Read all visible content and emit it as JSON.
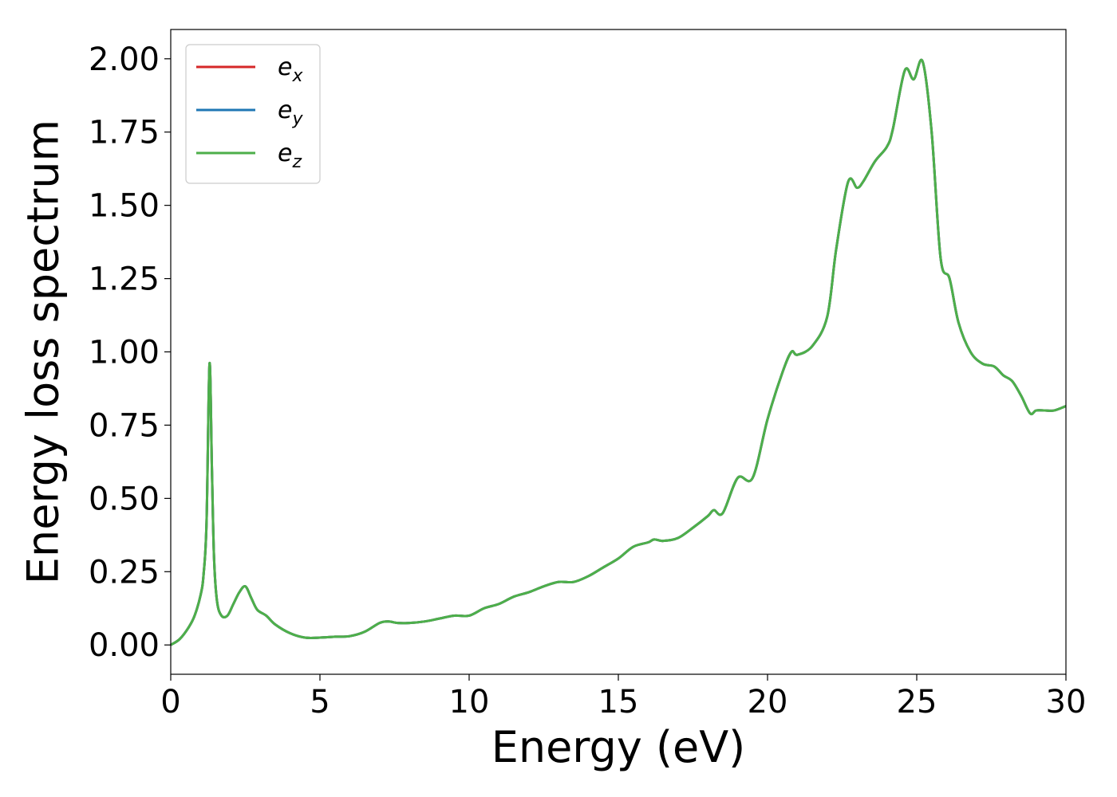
{
  "chart_data": {
    "type": "line",
    "title": "",
    "xlabel": "Energy (eV)",
    "ylabel": "Energy loss spectrum",
    "xlim": [
      0,
      30
    ],
    "ylim": [
      -0.1,
      2.1
    ],
    "x_ticks": [
      "0",
      "5",
      "10",
      "15",
      "20",
      "25",
      "30"
    ],
    "y_ticks": [
      "0.00",
      "0.25",
      "0.50",
      "0.75",
      "1.00",
      "1.25",
      "1.50",
      "1.75",
      "2.00"
    ],
    "grid": false,
    "legend_position": "upper-left",
    "x": [
      0,
      0.3,
      0.6,
      0.8,
      1.0,
      1.1,
      1.2,
      1.3,
      1.38,
      1.45,
      1.55,
      1.7,
      1.9,
      2.1,
      2.3,
      2.5,
      2.7,
      2.9,
      3.2,
      3.5,
      4.0,
      4.5,
      5.0,
      5.5,
      6.0,
      6.5,
      7.0,
      7.3,
      7.6,
      8.0,
      8.5,
      9.0,
      9.5,
      10.0,
      10.5,
      11.0,
      11.5,
      12.0,
      12.5,
      13.0,
      13.5,
      14.0,
      14.5,
      15.0,
      15.5,
      16.0,
      16.2,
      16.5,
      17.0,
      17.5,
      18.0,
      18.2,
      18.5,
      19.0,
      19.5,
      20.0,
      20.5,
      20.8,
      21.0,
      21.5,
      22.0,
      22.3,
      22.7,
      23.0,
      23.2,
      23.6,
      24.0,
      24.2,
      24.6,
      24.9,
      25.2,
      25.5,
      25.8,
      26.1,
      26.4,
      26.8,
      27.2,
      27.6,
      27.9,
      28.2,
      28.5,
      28.8,
      29.0,
      29.3,
      29.6,
      30.0
    ],
    "series": [
      {
        "name": "e_x",
        "label_base": "e",
        "label_sub": "x",
        "color": "#d62728",
        "values": [
          0.0,
          0.02,
          0.06,
          0.1,
          0.17,
          0.24,
          0.42,
          0.96,
          0.6,
          0.3,
          0.15,
          0.1,
          0.1,
          0.14,
          0.18,
          0.2,
          0.16,
          0.12,
          0.1,
          0.07,
          0.04,
          0.025,
          0.025,
          0.028,
          0.03,
          0.045,
          0.075,
          0.08,
          0.075,
          0.075,
          0.08,
          0.09,
          0.1,
          0.1,
          0.125,
          0.14,
          0.165,
          0.18,
          0.2,
          0.215,
          0.215,
          0.235,
          0.265,
          0.295,
          0.335,
          0.35,
          0.36,
          0.355,
          0.365,
          0.4,
          0.44,
          0.46,
          0.45,
          0.57,
          0.57,
          0.77,
          0.93,
          1.0,
          0.99,
          1.02,
          1.12,
          1.35,
          1.58,
          1.56,
          1.58,
          1.65,
          1.7,
          1.76,
          1.96,
          1.93,
          1.99,
          1.75,
          1.32,
          1.25,
          1.1,
          1.0,
          0.96,
          0.95,
          0.92,
          0.9,
          0.85,
          0.79,
          0.8,
          0.8,
          0.8,
          0.815
        ]
      },
      {
        "name": "e_y",
        "label_base": "e",
        "label_sub": "y",
        "color": "#1f77b4",
        "values": [
          0.0,
          0.02,
          0.06,
          0.1,
          0.17,
          0.24,
          0.42,
          0.96,
          0.6,
          0.3,
          0.15,
          0.1,
          0.1,
          0.14,
          0.18,
          0.2,
          0.16,
          0.12,
          0.1,
          0.07,
          0.04,
          0.025,
          0.025,
          0.028,
          0.03,
          0.045,
          0.075,
          0.08,
          0.075,
          0.075,
          0.08,
          0.09,
          0.1,
          0.1,
          0.125,
          0.14,
          0.165,
          0.18,
          0.2,
          0.215,
          0.215,
          0.235,
          0.265,
          0.295,
          0.335,
          0.35,
          0.36,
          0.355,
          0.365,
          0.4,
          0.44,
          0.46,
          0.45,
          0.57,
          0.57,
          0.77,
          0.93,
          1.0,
          0.99,
          1.02,
          1.12,
          1.35,
          1.58,
          1.56,
          1.58,
          1.65,
          1.7,
          1.76,
          1.96,
          1.93,
          1.99,
          1.75,
          1.32,
          1.25,
          1.1,
          1.0,
          0.96,
          0.95,
          0.92,
          0.9,
          0.85,
          0.79,
          0.8,
          0.8,
          0.8,
          0.815
        ]
      },
      {
        "name": "e_z",
        "label_base": "e",
        "label_sub": "z",
        "color": "#4daf4a",
        "values": [
          0.0,
          0.02,
          0.06,
          0.1,
          0.17,
          0.24,
          0.42,
          0.96,
          0.6,
          0.3,
          0.15,
          0.1,
          0.1,
          0.14,
          0.18,
          0.2,
          0.16,
          0.12,
          0.1,
          0.07,
          0.04,
          0.025,
          0.025,
          0.028,
          0.03,
          0.045,
          0.075,
          0.08,
          0.075,
          0.075,
          0.08,
          0.09,
          0.1,
          0.1,
          0.125,
          0.14,
          0.165,
          0.18,
          0.2,
          0.215,
          0.215,
          0.235,
          0.265,
          0.295,
          0.335,
          0.35,
          0.36,
          0.355,
          0.365,
          0.4,
          0.44,
          0.46,
          0.45,
          0.57,
          0.57,
          0.77,
          0.93,
          1.0,
          0.99,
          1.02,
          1.12,
          1.35,
          1.58,
          1.56,
          1.58,
          1.65,
          1.7,
          1.76,
          1.96,
          1.93,
          1.99,
          1.75,
          1.32,
          1.25,
          1.1,
          1.0,
          0.96,
          0.95,
          0.92,
          0.9,
          0.85,
          0.79,
          0.8,
          0.8,
          0.8,
          0.815
        ]
      }
    ]
  }
}
